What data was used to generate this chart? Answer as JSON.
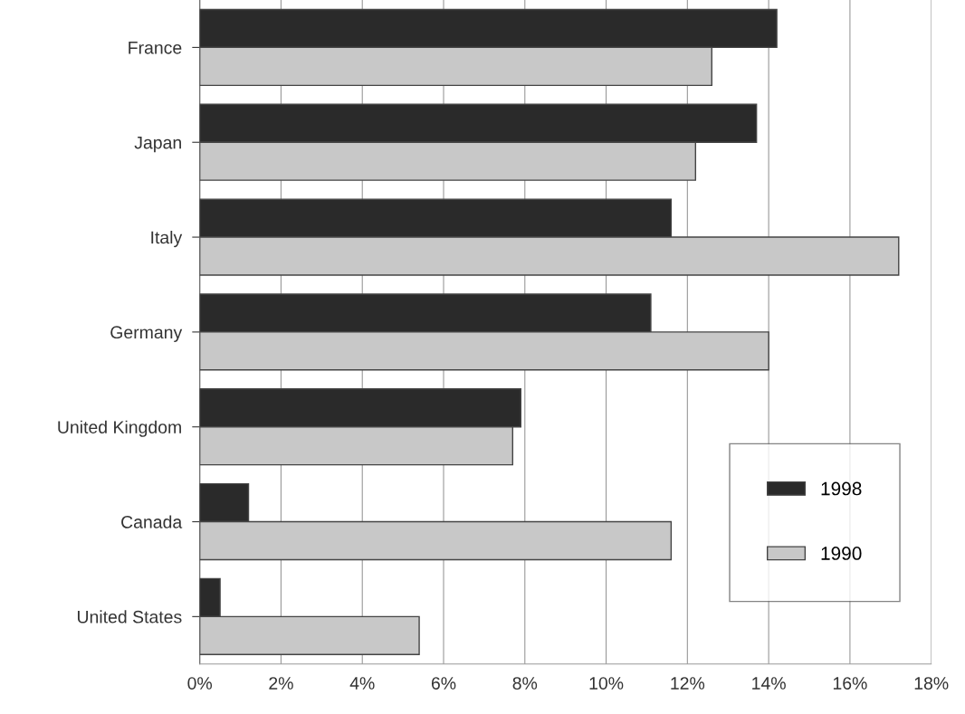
{
  "chart_data": {
    "type": "bar",
    "orientation": "horizontal",
    "categories": [
      "France",
      "Japan",
      "Italy",
      "Germany",
      "United Kingdom",
      "Canada",
      "United States"
    ],
    "series": [
      {
        "name": "1998",
        "color": "#2a2a2a",
        "values": [
          14.2,
          13.7,
          11.6,
          11.1,
          7.9,
          1.2,
          0.5
        ]
      },
      {
        "name": "1990",
        "color": "#c8c8c8",
        "values": [
          12.6,
          12.2,
          17.2,
          14.0,
          7.7,
          11.6,
          5.4
        ]
      }
    ],
    "xlim": [
      0,
      18
    ],
    "xticks": [
      {
        "value": 0,
        "label": "0%"
      },
      {
        "value": 2,
        "label": "2%"
      },
      {
        "value": 4,
        "label": "4%"
      },
      {
        "value": 6,
        "label": "6%"
      },
      {
        "value": 8,
        "label": "8%"
      },
      {
        "value": 10,
        "label": "10%"
      },
      {
        "value": 12,
        "label": "12%"
      },
      {
        "value": 14,
        "label": "14%"
      },
      {
        "value": 16,
        "label": "16%"
      },
      {
        "value": 18,
        "label": "18%"
      }
    ],
    "grid": "x",
    "legend": "lower right"
  }
}
